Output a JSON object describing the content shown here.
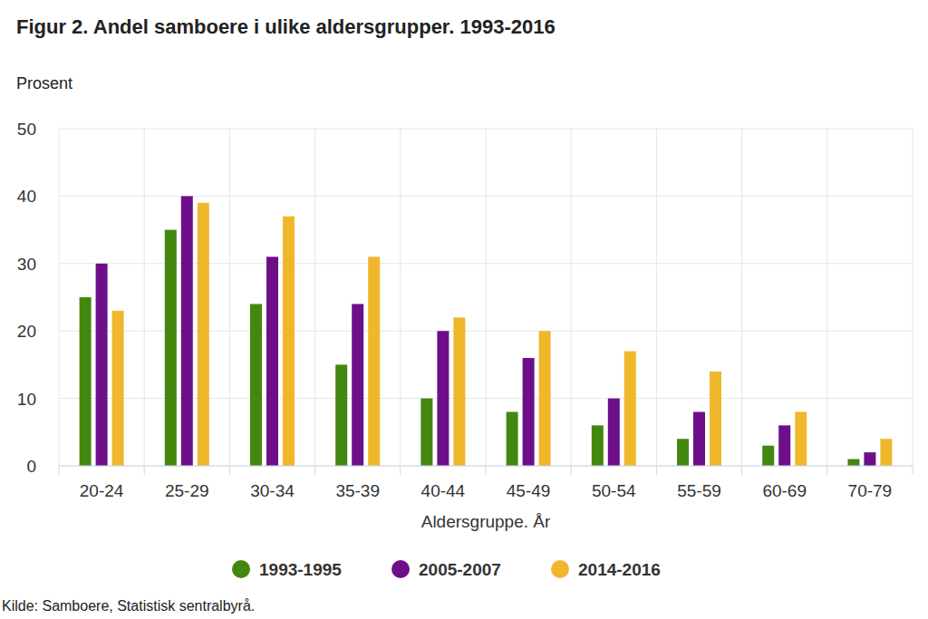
{
  "chart_data": {
    "type": "bar",
    "title": "Figur 2. Andel samboere i ulike aldersgrupper. 1993-2016",
    "y_label": "Prosent",
    "x_label": "Aldersgruppe. År",
    "source": "Kilde: Samboere, Statistisk sentralbyrå.",
    "categories": [
      "20-24",
      "25-29",
      "30-34",
      "35-39",
      "40-44",
      "45-49",
      "50-54",
      "55-59",
      "60-69",
      "70-79"
    ],
    "series": [
      {
        "name": "1993-1995",
        "color": "#43870f",
        "values": [
          25,
          35,
          24,
          15,
          10,
          8,
          6,
          4,
          3,
          1
        ]
      },
      {
        "name": "2005-2007",
        "color": "#6e0f8a",
        "values": [
          30,
          40,
          31,
          24,
          20,
          16,
          10,
          8,
          6,
          2
        ]
      },
      {
        "name": "2014-2016",
        "color": "#efb72c",
        "values": [
          23,
          39,
          37,
          31,
          22,
          20,
          17,
          14,
          8,
          4
        ]
      }
    ],
    "ylim": [
      0,
      50
    ],
    "yticks": [
      0,
      10,
      20,
      30,
      40,
      50
    ],
    "grid": true,
    "legend": "bottom"
  }
}
